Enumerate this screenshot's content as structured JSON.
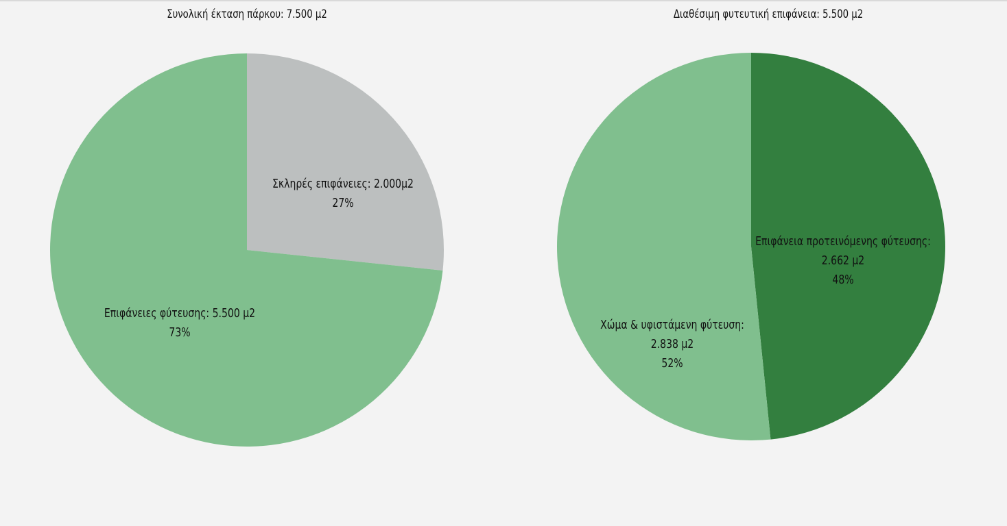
{
  "chart_data": [
    {
      "type": "pie",
      "title": "Συνολική έκταση πάρκου: 7.500 μ2",
      "slices": [
        {
          "label_lines": [
            "Σκληρές επιφάνειες: 2.000μ2",
            "27%"
          ],
          "value": 2000,
          "percent": 27,
          "color": "#bcbfbf"
        },
        {
          "label_lines": [
            "Επιφάνειες φύτευσης: 5.500 μ2",
            "73%"
          ],
          "value": 5500,
          "percent": 73,
          "color": "#80bf8e"
        }
      ],
      "legend": "none"
    },
    {
      "type": "pie",
      "title": "Διαθέσιμη φυτευτική επιφάνεια: 5.500 μ2",
      "slices": [
        {
          "label_lines": [
            "Επιφάνεια προτεινόμενης φύτευσης:",
            "2.662 μ2",
            "48%"
          ],
          "value": 2662,
          "percent": 48,
          "color": "#337f3f"
        },
        {
          "label_lines": [
            "Χώμα & υφιστάμενη φύτευση:",
            "2.838 μ2",
            "52%"
          ],
          "value": 2838,
          "percent": 52,
          "color": "#80bf8e"
        }
      ],
      "legend": "none"
    }
  ]
}
